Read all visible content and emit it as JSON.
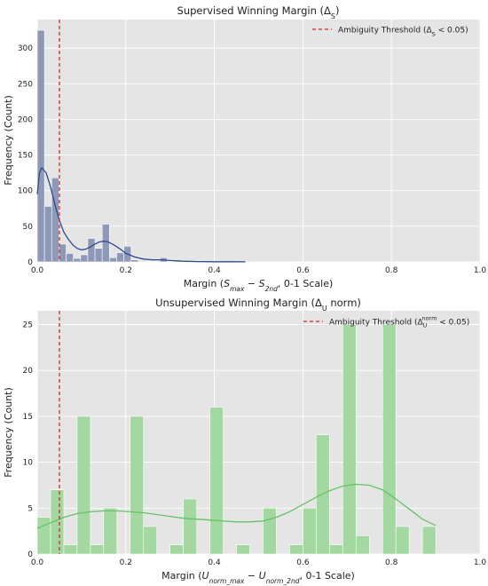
{
  "colors": {
    "panel_bg": "#e5e5e5",
    "grid": "#ffffff",
    "bar_top": "#8e98b8",
    "kde_top": "#2f4a8a",
    "bar_bottom": "#a3d9a0",
    "kde_bottom": "#66c266",
    "threshold": "#d62728",
    "text": "#222222"
  },
  "chart_data": [
    {
      "type": "bar",
      "title": "Supervised Winning Margin (Δ",
      "title_sub": "S",
      "title_end": ")",
      "xlabel": {
        "pre": "Margin (",
        "v1": "S",
        "s1": "max",
        "op": " − ",
        "v2": "S",
        "s2": "2nd",
        "post": ", 0-1 Scale)"
      },
      "ylabel": "Frequency (Count)",
      "xlim": [
        0,
        1.0
      ],
      "ylim": [
        0,
        340
      ],
      "xticks": [
        0.0,
        0.2,
        0.4,
        0.6,
        0.8,
        1.0
      ],
      "xtick_labels": [
        "0.0",
        "0.2",
        "0.4",
        "0.6",
        "0.8",
        "1.0"
      ],
      "yticks": [
        0,
        50,
        100,
        150,
        200,
        250,
        300
      ],
      "ytick_labels": [
        "0",
        "50",
        "100",
        "150",
        "200",
        "250",
        "300"
      ],
      "grid": true,
      "bin_width": 0.0163,
      "bins": [
        {
          "x0": 0.0,
          "count": 325
        },
        {
          "x0": 0.0163,
          "count": 78
        },
        {
          "x0": 0.0326,
          "count": 118
        },
        {
          "x0": 0.0489,
          "count": 25
        },
        {
          "x0": 0.0652,
          "count": 12
        },
        {
          "x0": 0.0815,
          "count": 5
        },
        {
          "x0": 0.0978,
          "count": 10
        },
        {
          "x0": 0.1141,
          "count": 33
        },
        {
          "x0": 0.1304,
          "count": 19
        },
        {
          "x0": 0.1467,
          "count": 53
        },
        {
          "x0": 0.163,
          "count": 6
        },
        {
          "x0": 0.1793,
          "count": 13
        },
        {
          "x0": 0.1956,
          "count": 22
        },
        {
          "x0": 0.2119,
          "count": 3
        },
        {
          "x0": 0.2282,
          "count": 1
        },
        {
          "x0": 0.2771,
          "count": 6
        },
        {
          "x0": 0.3097,
          "count": 1
        },
        {
          "x0": 0.3586,
          "count": 1
        },
        {
          "x0": 0.4738,
          "count": 1
        }
      ],
      "kde": [
        [
          0.0,
          95
        ],
        [
          0.005,
          125
        ],
        [
          0.01,
          132
        ],
        [
          0.02,
          125
        ],
        [
          0.03,
          105
        ],
        [
          0.04,
          80
        ],
        [
          0.05,
          58
        ],
        [
          0.06,
          42
        ],
        [
          0.07,
          32
        ],
        [
          0.08,
          24
        ],
        [
          0.09,
          19
        ],
        [
          0.1,
          17
        ],
        [
          0.11,
          18
        ],
        [
          0.12,
          21
        ],
        [
          0.13,
          25
        ],
        [
          0.14,
          28
        ],
        [
          0.15,
          29
        ],
        [
          0.16,
          28
        ],
        [
          0.17,
          25
        ],
        [
          0.18,
          21
        ],
        [
          0.19,
          17
        ],
        [
          0.2,
          12
        ],
        [
          0.22,
          7
        ],
        [
          0.24,
          4
        ],
        [
          0.26,
          3
        ],
        [
          0.28,
          3
        ],
        [
          0.3,
          2
        ],
        [
          0.33,
          1
        ],
        [
          0.36,
          0.5
        ],
        [
          0.4,
          0.3
        ],
        [
          0.44,
          0.2
        ],
        [
          0.47,
          0.1
        ]
      ],
      "threshold": 0.05,
      "legend": {
        "position": "top-right",
        "label_pre": "Ambiguity Threshold (Δ",
        "label_sub": "S",
        "label_post": " < 0.05)"
      }
    },
    {
      "type": "bar",
      "title": "Unsupervised Winning Margin (Δ",
      "title_sub": "U",
      "title_end": " norm)",
      "xlabel": {
        "pre": "Margin (",
        "v1": "U",
        "s1": "norm_max",
        "op": " − ",
        "v2": "U",
        "s2": "norm_2nd",
        "post": ", 0-1 Scale)"
      },
      "ylabel": "Frequency (Count)",
      "xlim": [
        0,
        1.0
      ],
      "ylim": [
        0,
        26.5
      ],
      "xticks": [
        0.0,
        0.2,
        0.4,
        0.6,
        0.8,
        1.0
      ],
      "xtick_labels": [
        "0.0",
        "0.2",
        "0.4",
        "0.6",
        "0.8",
        "1.0"
      ],
      "yticks": [
        0,
        5,
        10,
        15,
        20,
        25
      ],
      "ytick_labels": [
        "0",
        "5",
        "10",
        "15",
        "20",
        "25"
      ],
      "grid": true,
      "bin_width": 0.03,
      "bins": [
        {
          "x0": 0.0,
          "count": 4
        },
        {
          "x0": 0.03,
          "count": 7
        },
        {
          "x0": 0.06,
          "count": 1
        },
        {
          "x0": 0.09,
          "count": 15
        },
        {
          "x0": 0.12,
          "count": 1
        },
        {
          "x0": 0.15,
          "count": 5
        },
        {
          "x0": 0.18,
          "count": 0
        },
        {
          "x0": 0.21,
          "count": 15
        },
        {
          "x0": 0.24,
          "count": 3
        },
        {
          "x0": 0.27,
          "count": 0
        },
        {
          "x0": 0.3,
          "count": 1
        },
        {
          "x0": 0.33,
          "count": 6
        },
        {
          "x0": 0.36,
          "count": 0
        },
        {
          "x0": 0.39,
          "count": 16
        },
        {
          "x0": 0.42,
          "count": 0
        },
        {
          "x0": 0.45,
          "count": 1
        },
        {
          "x0": 0.48,
          "count": 0
        },
        {
          "x0": 0.51,
          "count": 5
        },
        {
          "x0": 0.54,
          "count": 0
        },
        {
          "x0": 0.57,
          "count": 1
        },
        {
          "x0": 0.6,
          "count": 5
        },
        {
          "x0": 0.63,
          "count": 13
        },
        {
          "x0": 0.66,
          "count": 1
        },
        {
          "x0": 0.69,
          "count": 25
        },
        {
          "x0": 0.72,
          "count": 2
        },
        {
          "x0": 0.75,
          "count": 0
        },
        {
          "x0": 0.78,
          "count": 25
        },
        {
          "x0": 0.81,
          "count": 3
        },
        {
          "x0": 0.84,
          "count": 0
        },
        {
          "x0": 0.87,
          "count": 3
        }
      ],
      "kde": [
        [
          0.0,
          2.8
        ],
        [
          0.03,
          3.4
        ],
        [
          0.06,
          4.0
        ],
        [
          0.09,
          4.4
        ],
        [
          0.12,
          4.6
        ],
        [
          0.15,
          4.7
        ],
        [
          0.18,
          4.7
        ],
        [
          0.21,
          4.6
        ],
        [
          0.24,
          4.5
        ],
        [
          0.27,
          4.3
        ],
        [
          0.3,
          4.1
        ],
        [
          0.33,
          3.9
        ],
        [
          0.36,
          3.8
        ],
        [
          0.39,
          3.7
        ],
        [
          0.42,
          3.6
        ],
        [
          0.45,
          3.5
        ],
        [
          0.48,
          3.5
        ],
        [
          0.51,
          3.6
        ],
        [
          0.54,
          4.0
        ],
        [
          0.57,
          4.6
        ],
        [
          0.6,
          5.4
        ],
        [
          0.63,
          6.2
        ],
        [
          0.66,
          6.9
        ],
        [
          0.69,
          7.4
        ],
        [
          0.72,
          7.6
        ],
        [
          0.75,
          7.5
        ],
        [
          0.78,
          7.0
        ],
        [
          0.81,
          6.0
        ],
        [
          0.84,
          4.9
        ],
        [
          0.87,
          3.8
        ],
        [
          0.9,
          3.1
        ]
      ],
      "threshold": 0.05,
      "legend": {
        "position": "top-right",
        "label_pre": "Ambiguity Threshold (Δ",
        "label_sub": "U",
        "label_sup": "norm",
        "label_post": " < 0.05)"
      }
    }
  ]
}
